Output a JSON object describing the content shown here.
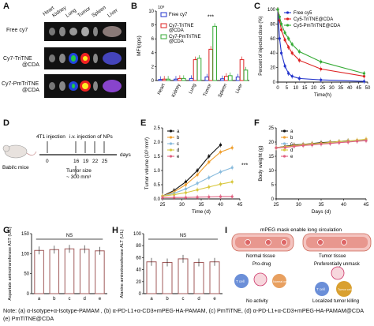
{
  "panels": {
    "A": {
      "letter": "A",
      "organs": [
        "Heart",
        "Kidney",
        "Lung",
        "Tumor",
        "Spleen",
        "Liver"
      ],
      "rows": [
        "Free cy7",
        "Cy7-TriTNE\n@CDA",
        "Cy7-PmTriTNE\n@CDA"
      ]
    },
    "B": {
      "letter": "B"
    },
    "C": {
      "letter": "C"
    },
    "D": {
      "letter": "D",
      "mouse_label": "Babl/c mice",
      "injection": "4T1 injection",
      "iv": "i.v. injection of NPs",
      "days_label": "days",
      "tumor_size": "Tumor size",
      "tumor_size2": "~ 300 mm³",
      "days": [
        "0",
        "16",
        "19",
        "22",
        "25"
      ]
    },
    "E": {
      "letter": "E"
    },
    "F": {
      "letter": "F"
    },
    "G": {
      "letter": "G"
    },
    "H": {
      "letter": "H"
    },
    "I": {
      "letter": "I",
      "title": "mPEG mask enable long circulation",
      "normal": "Normal tissue",
      "tumor": "Tumor tissue",
      "prodrug": "Pro-drug",
      "unmask": "Preferentially unmask",
      "no_activity": "No activity",
      "killing": "Localized tumor killing",
      "tcell": "T cell",
      "normal_cell": "Normal cell",
      "tumor_cell": "Tumor cell"
    }
  },
  "note": "Note: (a) α-Isotype+α-Isotype-PAMAM , (b) α-PD-L1+α-CD3+mPEG-HA-PAMAM, (c) PmTiTNE, (d) α-PD-L1+α-CD3+mPEG-HA-PAMAM@CDA",
  "note2": "(e)  PmTiTNE@CDA",
  "chart_data": [
    {
      "id": "B",
      "type": "bar",
      "ylabel": "MFI(cps)",
      "ylim": [
        0,
        10
      ],
      "ytick_label": "10⁸",
      "categories": [
        "Heart",
        "Kidney",
        "Lung",
        "Tumor",
        "Spleen",
        "Liver"
      ],
      "series": [
        {
          "name": "Free cy7",
          "color": "#2233cc",
          "values": [
            0.15,
            0.2,
            0.3,
            0.5,
            0.25,
            0.5
          ]
        },
        {
          "name": "Cy7-TriTNE\n@CDA",
          "color": "#dd2222",
          "values": [
            0.2,
            0.3,
            3.0,
            4.5,
            0.6,
            3.0
          ]
        },
        {
          "name": "Cy7-PmTriTNE\n@CDA",
          "color": "#33aa33",
          "values": [
            0.2,
            0.3,
            3.2,
            7.8,
            0.7,
            1.5
          ]
        }
      ],
      "annotation": "***",
      "yticks": [
        "0",
        "2",
        "4",
        "6",
        "8",
        "10"
      ]
    },
    {
      "id": "C",
      "type": "line",
      "xlabel": "Time(h)",
      "ylabel": "Percent of injected dose (%)",
      "xlim": [
        0,
        50
      ],
      "ylim": [
        0,
        100
      ],
      "xticks": [
        "0",
        "5",
        "10",
        "15",
        "20",
        "25",
        "30",
        "35",
        "40",
        "45",
        "50"
      ],
      "yticks": [
        "0",
        "20",
        "40",
        "60",
        "80",
        "100"
      ],
      "x": [
        0,
        1,
        2,
        4,
        6,
        8,
        12,
        24,
        48
      ],
      "series": [
        {
          "name": "Free cy5",
          "color": "#2233cc",
          "values": [
            100,
            60,
            40,
            22,
            12,
            8,
            5,
            3,
            1
          ]
        },
        {
          "name": "Cy5-TriTNE@CDA",
          "color": "#dd2222",
          "values": [
            100,
            85,
            72,
            58,
            48,
            40,
            30,
            18,
            8
          ]
        },
        {
          "name": "Cy5-PmTriTNE@CDA",
          "color": "#33aa33",
          "values": [
            100,
            90,
            80,
            68,
            60,
            52,
            42,
            28,
            12
          ]
        }
      ]
    },
    {
      "id": "E",
      "type": "line",
      "xlabel": "Time  (d)",
      "ylabel": "Tumor volume (10³ mm³)",
      "xlim": [
        25,
        45
      ],
      "ylim": [
        0,
        2.5
      ],
      "xticks": [
        "25",
        "30",
        "35",
        "40",
        "45"
      ],
      "yticks": [
        "0.0",
        "0.5",
        "1.0",
        "1.5",
        "2.0",
        "2.5"
      ],
      "x": [
        25,
        28,
        31,
        34,
        37,
        40,
        43
      ],
      "annotation": "***",
      "series": [
        {
          "name": "a",
          "color": "#111111",
          "values": [
            0.1,
            0.3,
            0.6,
            1.0,
            1.5,
            1.9,
            null
          ]
        },
        {
          "name": "b",
          "color": "#f0a030",
          "values": [
            0.1,
            0.25,
            0.5,
            0.85,
            1.3,
            1.65,
            1.8
          ]
        },
        {
          "name": "c",
          "color": "#88bbdd",
          "values": [
            0.1,
            0.2,
            0.35,
            0.55,
            0.75,
            0.95,
            1.1
          ]
        },
        {
          "name": "d",
          "color": "#d8c840",
          "values": [
            0.1,
            0.15,
            0.22,
            0.32,
            0.42,
            0.52,
            0.6
          ]
        },
        {
          "name": "e",
          "color": "#e06080",
          "values": [
            0.05,
            0.05,
            0.05,
            0.06,
            0.07,
            0.08,
            0.08
          ]
        }
      ]
    },
    {
      "id": "F",
      "type": "line",
      "xlabel": "Days (d)",
      "ylabel": "Body weight (g)",
      "xlim": [
        25,
        45
      ],
      "ylim": [
        0,
        25
      ],
      "xticks": [
        "25",
        "30",
        "35",
        "40",
        "45"
      ],
      "yticks": [
        "0",
        "5",
        "10",
        "15",
        "20",
        "25"
      ],
      "x": [
        25,
        27,
        29,
        31,
        33,
        35,
        37,
        39,
        41,
        43,
        45
      ],
      "series": [
        {
          "name": "a",
          "color": "#111111",
          "values": [
            18,
            18.5,
            19,
            19.2,
            19.5,
            19.8,
            20,
            20.2,
            20.5,
            null,
            null
          ]
        },
        {
          "name": "b",
          "color": "#f0a030",
          "values": [
            18,
            18.3,
            18.8,
            19,
            19.3,
            19.5,
            19.8,
            20,
            20.3,
            20.6,
            21
          ]
        },
        {
          "name": "c",
          "color": "#88bbdd",
          "values": [
            18,
            18.2,
            18.6,
            18.9,
            19.1,
            19.4,
            19.6,
            19.9,
            20.1,
            20.4,
            20.7
          ]
        },
        {
          "name": "d",
          "color": "#d8c840",
          "values": [
            18,
            18.4,
            18.7,
            19.1,
            19.4,
            19.6,
            19.9,
            20.2,
            20.4,
            20.7,
            21
          ]
        },
        {
          "name": "e",
          "color": "#e06080",
          "values": [
            18,
            18.1,
            18.5,
            18.8,
            19,
            19.3,
            19.5,
            19.8,
            20,
            20.3,
            20.5
          ]
        }
      ]
    },
    {
      "id": "G",
      "type": "bar",
      "ylabel": "Aspartate aminotransferase AST (U/L)",
      "ylim": [
        0,
        150
      ],
      "yticks": [
        "0",
        "50",
        "100",
        "150"
      ],
      "categories": [
        "a",
        "b",
        "c",
        "d",
        "e"
      ],
      "values": [
        108,
        110,
        112,
        111,
        107
      ],
      "colors": [
        "#a05a5a",
        "#a05a5a",
        "#a05a5a",
        "#a05a5a",
        "#a05a5a"
      ],
      "annotation": "NS"
    },
    {
      "id": "H",
      "type": "bar",
      "ylabel": "Alanine aminotransferase ALT (U/L)",
      "ylim": [
        0,
        100
      ],
      "yticks": [
        "0",
        "20",
        "40",
        "60",
        "80",
        "100"
      ],
      "categories": [
        "a",
        "b",
        "c",
        "d",
        "e"
      ],
      "values": [
        53,
        52,
        58,
        52,
        53
      ],
      "colors": [
        "#a05a5a",
        "#a05a5a",
        "#a05a5a",
        "#a05a5a",
        "#a05a5a"
      ],
      "annotation": "NS"
    }
  ]
}
